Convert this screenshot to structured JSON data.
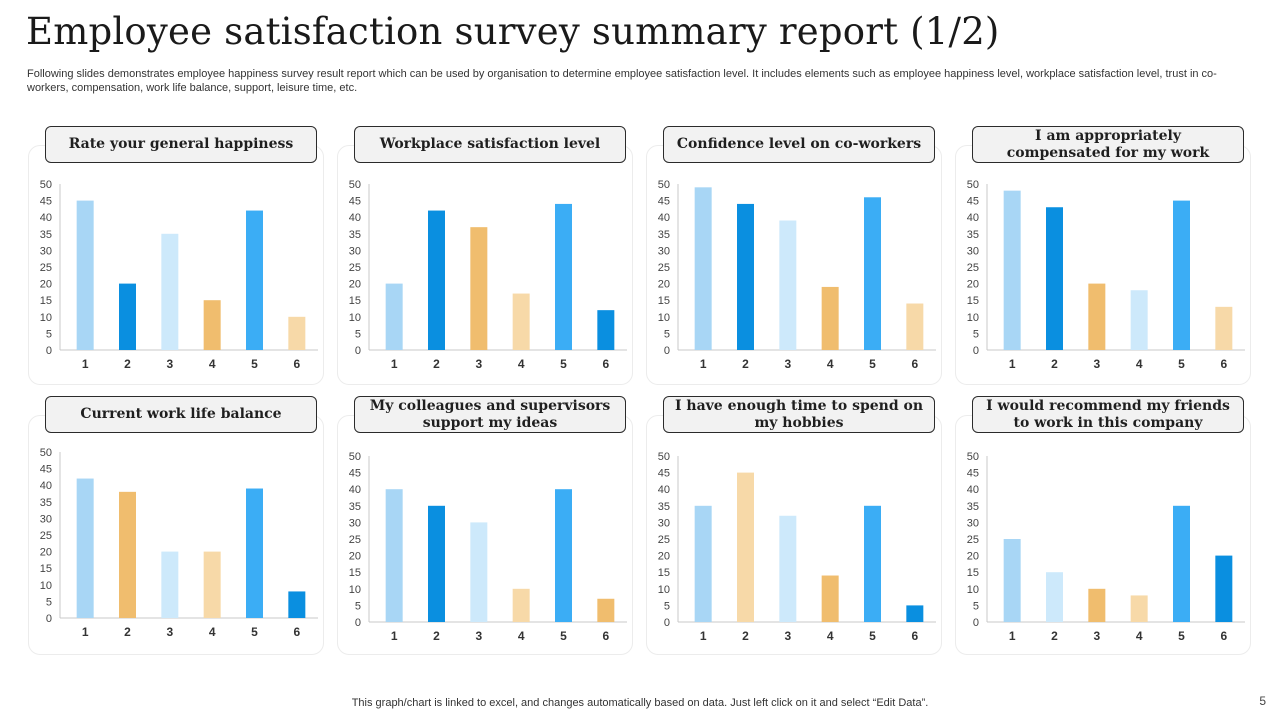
{
  "header": {
    "title": "Employee satisfaction survey summary report (1/2)",
    "subtitle": "Following slides demonstrates employee happiness survey result report which can be used by organisation to determine employee satisfaction level. It includes elements such as employee happiness level, workplace satisfaction level, trust in co-workers, compensation, work life balance, support, leisure time, etc."
  },
  "footer": {
    "note": "This graph/chart is linked to excel,  and changes automatically based on data. Just left click on it and select “Edit Data”.",
    "page_number": "5"
  },
  "palette": {
    "light_blue": "#a8d6f5",
    "blue": "#0a8fe0",
    "pale_blue": "#cde9fb",
    "orange": "#f0bd6e",
    "peach": "#f7d9a8",
    "sky_blue": "#3badf5"
  },
  "chart_data": [
    {
      "type": "bar",
      "title": "Rate your general happiness",
      "categories": [
        "1",
        "2",
        "3",
        "4",
        "5",
        "6"
      ],
      "values": [
        45,
        20,
        35,
        15,
        42,
        10
      ],
      "bar_colors": [
        "#a8d6f5",
        "#0a8fe0",
        "#cde9fb",
        "#f0bd6e",
        "#3badf5",
        "#f7d9a8"
      ],
      "ylim": [
        0,
        50
      ],
      "yticks": [
        "0",
        "5",
        "10",
        "15",
        "20",
        "25",
        "30",
        "35",
        "40",
        "45",
        "50"
      ]
    },
    {
      "type": "bar",
      "title": "Workplace satisfaction level",
      "categories": [
        "1",
        "2",
        "3",
        "4",
        "5",
        "6"
      ],
      "values": [
        20,
        42,
        37,
        17,
        44,
        12
      ],
      "bar_colors": [
        "#a8d6f5",
        "#0a8fe0",
        "#f0bd6e",
        "#f7d9a8",
        "#3badf5",
        "#0a8fe0"
      ],
      "ylim": [
        0,
        50
      ],
      "yticks": [
        "0",
        "5",
        "10",
        "15",
        "20",
        "25",
        "30",
        "35",
        "40",
        "45",
        "50"
      ]
    },
    {
      "type": "bar",
      "title": "Confidence level on co-workers",
      "categories": [
        "1",
        "2",
        "3",
        "4",
        "5",
        "6"
      ],
      "values": [
        49,
        44,
        39,
        19,
        46,
        14
      ],
      "bar_colors": [
        "#a8d6f5",
        "#0a8fe0",
        "#cde9fb",
        "#f0bd6e",
        "#3badf5",
        "#f7d9a8"
      ],
      "ylim": [
        0,
        50
      ],
      "yticks": [
        "0",
        "5",
        "10",
        "15",
        "20",
        "25",
        "30",
        "35",
        "40",
        "45",
        "50"
      ]
    },
    {
      "type": "bar",
      "title": "I am appropriately compensated for my work",
      "categories": [
        "1",
        "2",
        "3",
        "4",
        "5",
        "6"
      ],
      "values": [
        48,
        43,
        20,
        18,
        45,
        13
      ],
      "bar_colors": [
        "#a8d6f5",
        "#0a8fe0",
        "#f0bd6e",
        "#cde9fb",
        "#3badf5",
        "#f7d9a8"
      ],
      "ylim": [
        0,
        50
      ],
      "yticks": [
        "0",
        "5",
        "10",
        "15",
        "20",
        "25",
        "30",
        "35",
        "40",
        "45",
        "50"
      ]
    },
    {
      "type": "bar",
      "title": "Current work life balance",
      "categories": [
        "1",
        "2",
        "3",
        "4",
        "5",
        "6"
      ],
      "values": [
        42,
        38,
        20,
        20,
        39,
        8
      ],
      "bar_colors": [
        "#a8d6f5",
        "#f0bd6e",
        "#cde9fb",
        "#f7d9a8",
        "#3badf5",
        "#0a8fe0"
      ],
      "ylim": [
        0,
        50
      ],
      "yticks": [
        "0",
        "5",
        "10",
        "15",
        "20",
        "25",
        "30",
        "35",
        "40",
        "45",
        "50"
      ]
    },
    {
      "type": "bar",
      "title": "My colleagues and supervisors support my ideas",
      "categories": [
        "1",
        "2",
        "3",
        "4",
        "5",
        "6"
      ],
      "values": [
        40,
        35,
        30,
        10,
        40,
        7
      ],
      "bar_colors": [
        "#a8d6f5",
        "#0a8fe0",
        "#cde9fb",
        "#f7d9a8",
        "#3badf5",
        "#f0bd6e"
      ],
      "ylim": [
        0,
        50
      ],
      "yticks": [
        "0",
        "5",
        "10",
        "15",
        "20",
        "25",
        "30",
        "35",
        "40",
        "45",
        "50"
      ]
    },
    {
      "type": "bar",
      "title": "I have enough time to spend on my hobbies",
      "categories": [
        "1",
        "2",
        "3",
        "4",
        "5",
        "6"
      ],
      "values": [
        35,
        45,
        32,
        14,
        35,
        5
      ],
      "bar_colors": [
        "#a8d6f5",
        "#f7d9a8",
        "#cde9fb",
        "#f0bd6e",
        "#3badf5",
        "#0a8fe0"
      ],
      "ylim": [
        0,
        50
      ],
      "yticks": [
        "0",
        "5",
        "10",
        "15",
        "20",
        "25",
        "30",
        "35",
        "40",
        "45",
        "50"
      ]
    },
    {
      "type": "bar",
      "title": "I would recommend my friends to work in this company",
      "categories": [
        "1",
        "2",
        "3",
        "4",
        "5",
        "6"
      ],
      "values": [
        25,
        15,
        10,
        8,
        35,
        20
      ],
      "bar_colors": [
        "#a8d6f5",
        "#cde9fb",
        "#f0bd6e",
        "#f7d9a8",
        "#3badf5",
        "#0a8fe0"
      ],
      "ylim": [
        0,
        50
      ],
      "yticks": [
        "0",
        "5",
        "10",
        "15",
        "20",
        "25",
        "30",
        "35",
        "40",
        "45",
        "50"
      ]
    }
  ]
}
